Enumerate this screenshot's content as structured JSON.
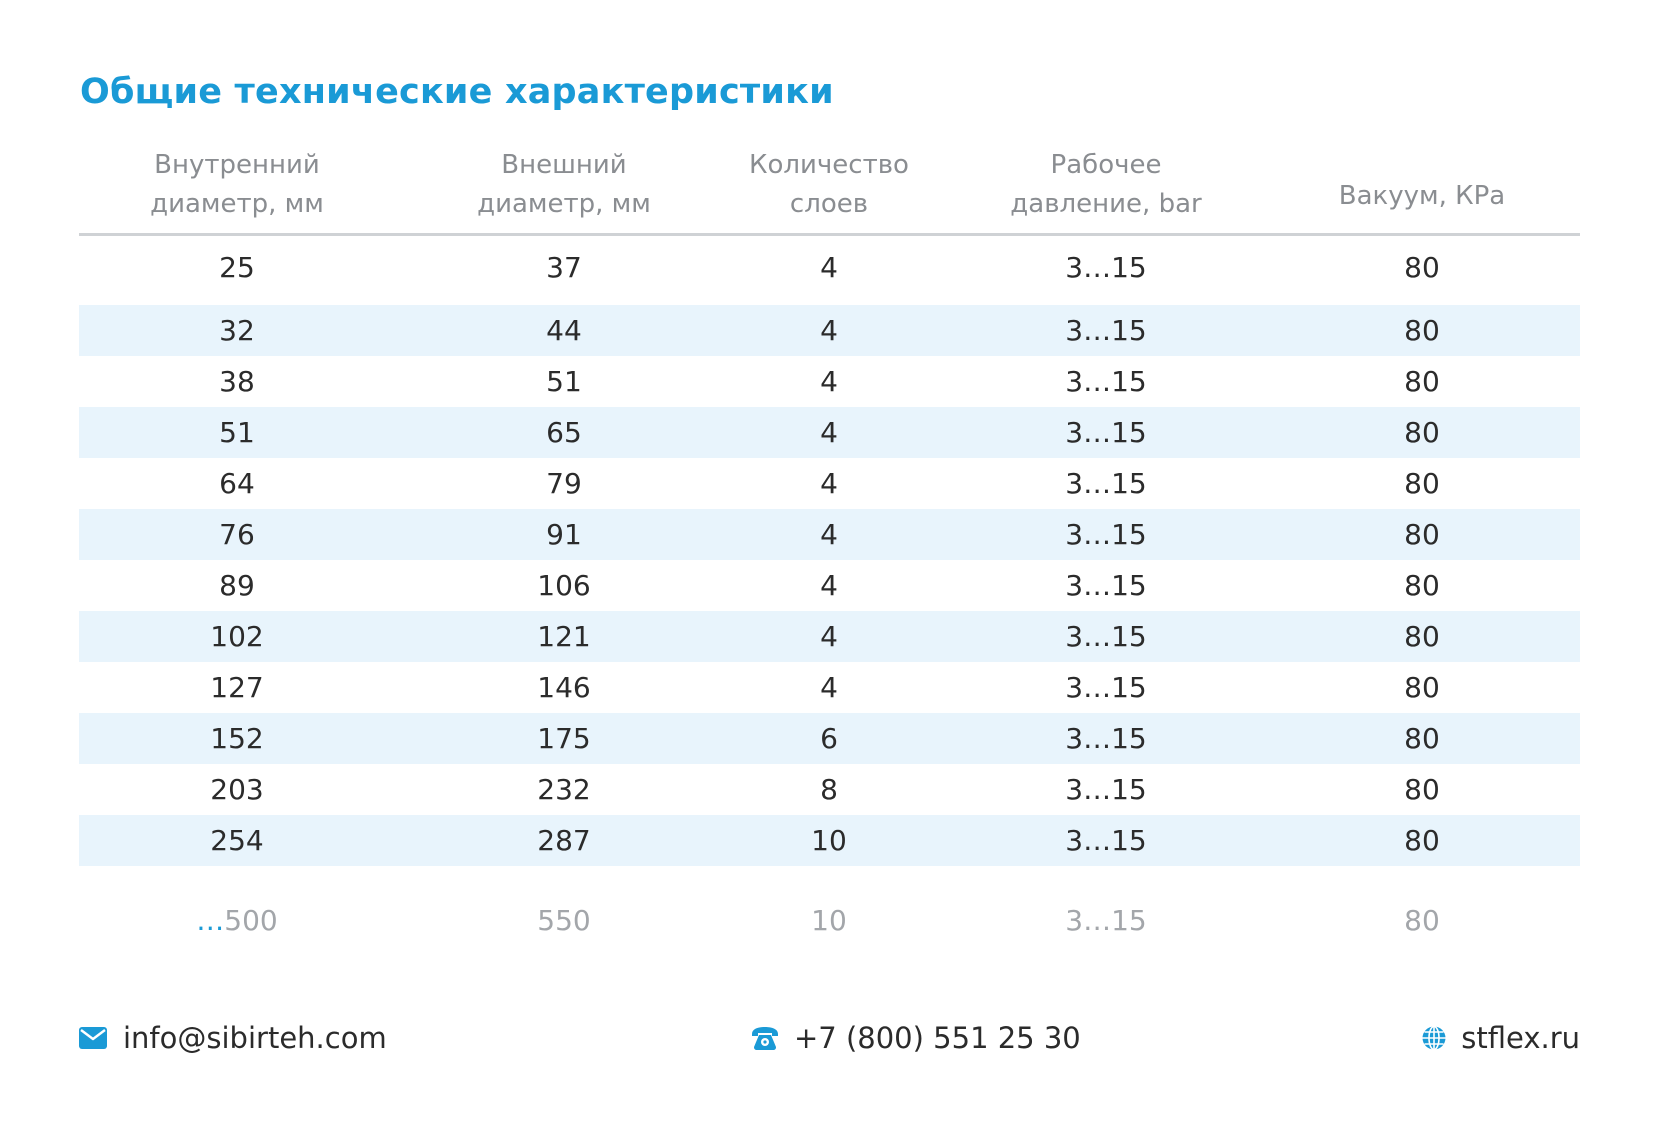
{
  "title": "Общие технические характеристики",
  "table": {
    "headers": [
      {
        "line1": "Внутренний",
        "line2": "диаметр, мм"
      },
      {
        "line1": "Внешний",
        "line2": "диаметр, мм"
      },
      {
        "line1": "Количество",
        "line2": "слоев"
      },
      {
        "line1": "Рабочее",
        "line2": "давление, bar"
      },
      {
        "line1": "Вакуум, КРа",
        "line2": ""
      }
    ],
    "rows": [
      [
        "25",
        "37",
        "4",
        "3…15",
        "80"
      ],
      [
        "32",
        "44",
        "4",
        "3…15",
        "80"
      ],
      [
        "38",
        "51",
        "4",
        "3…15",
        "80"
      ],
      [
        "51",
        "65",
        "4",
        "3…15",
        "80"
      ],
      [
        "64",
        "79",
        "4",
        "3…15",
        "80"
      ],
      [
        "76",
        "91",
        "4",
        "3…15",
        "80"
      ],
      [
        "89",
        "106",
        "4",
        "3…15",
        "80"
      ],
      [
        "102",
        "121",
        "4",
        "3…15",
        "80"
      ],
      [
        "127",
        "146",
        "4",
        "3…15",
        "80"
      ],
      [
        "152",
        "175",
        "6",
        "3…15",
        "80"
      ],
      [
        "203",
        "232",
        "8",
        "3…15",
        "80"
      ],
      [
        "254",
        "287",
        "10",
        "3…15",
        "80"
      ]
    ],
    "last_row": {
      "prefix": "…",
      "values": [
        "500",
        "550",
        "10",
        "3…15",
        "80"
      ]
    }
  },
  "footer": {
    "email": "info@sibirteh.com",
    "phone": "+7 (800) 551 25 30",
    "site": "stflex.ru",
    "email_icon": "envelope-icon",
    "phone_icon": "telephone-icon",
    "site_icon": "globe-icon",
    "accent_color": "#1a9ad6"
  }
}
